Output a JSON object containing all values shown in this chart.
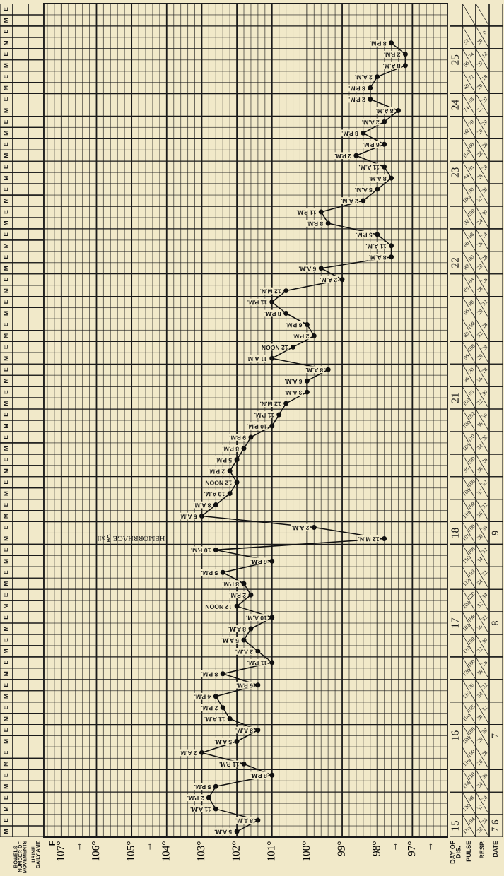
{
  "chart_data": [
    {
      "type": "other",
      "categories": [
        "BOWELS\nNUMBER OF\nMOVEMENTS",
        "URINE\nDAILY AMT."
      ],
      "y_categories": [
        "E",
        "M",
        "E",
        "M",
        "E",
        "M",
        "E",
        "M",
        "E",
        "M",
        "E",
        "M",
        "E",
        "M",
        "E",
        "M",
        "E",
        "M",
        "E",
        "M",
        "E",
        "M",
        "E",
        "M",
        "E",
        "M",
        "E",
        "M",
        "E",
        "M",
        "E",
        "M",
        "E",
        "M",
        "E",
        "M",
        "E",
        "M",
        "E",
        "M",
        "E",
        "M",
        "E",
        "M",
        "E",
        "M",
        "E",
        "M",
        "E",
        "M",
        "E",
        "M",
        "E",
        "M",
        "E",
        "M",
        "E",
        "M",
        "E",
        "M",
        "E",
        "M",
        "E",
        "M",
        "E",
        "M",
        "E",
        "M",
        "E",
        "M",
        "E",
        "M",
        "E",
        "M"
      ]
    },
    {
      "type": "line",
      "orientation": "horizontal",
      "color": "#111111",
      "marker": "circle",
      "line_style": "solid",
      "grid": true,
      "tick_labels": "x",
      "categories": [
        "8 P.M.",
        "2 P.M.",
        "8 A.M.",
        "2 A.M.",
        "8 P.M.",
        "2 P.M.",
        "8 A.M.",
        "2 A.M.",
        "8 P.M.",
        "6 P.M.",
        "2 P.M.",
        "11 A.M.",
        "8 A.M.",
        "5 A.M.",
        "2 A.M.",
        "11 P.M.",
        "8 P.M.",
        "5 P.M.",
        "11 A.M.",
        "8 A.M.",
        "6 A.M.",
        "2 A.M.",
        "12 M.N.",
        "11 P.M.",
        "8 P.M.",
        "6 P.M.",
        "2 P.M.",
        "12 NOON",
        "11 A.M.",
        "8 A.M.",
        "6 A.M.",
        "3 A.M.",
        "12 M.N.",
        "11 P.M.",
        "10 P.M.",
        "9 P.M.",
        "8 P.M.",
        "5 P.M.",
        "2 P.M.",
        "12 NOON",
        "10 A.M.",
        "8 A.M.",
        "5 A.M.",
        "2 A.M.",
        "12 M.N.",
        "10 P.M.",
        "6 P.M.",
        "5 P.M.",
        "8 P.M.",
        "2 P.M.",
        "12 NOON",
        "10 A.M.",
        "8 A.M.",
        "5 A.M.",
        "2 A.M.",
        "11 P.M.",
        "8 P.M.",
        "6 P.M.",
        "4 P.M.",
        "2 P.M.",
        "11 A.M.",
        "8 A.M.",
        "5 A.M.",
        "2 A.M.",
        "11 P.M.",
        "8 P.M.",
        "5 P.M.",
        "2 P.M.",
        "11 A.M.",
        "8 A.M.",
        "5 A.M."
      ],
      "values": [
        97.6,
        97.2,
        97.2,
        98.0,
        98.2,
        98.2,
        97.4,
        97.8,
        98.4,
        97.8,
        98.6,
        97.8,
        97.6,
        98.0,
        98.4,
        99.6,
        99.4,
        98.0,
        97.6,
        97.6,
        99.6,
        99.0,
        100.6,
        101.0,
        100.6,
        100.0,
        99.8,
        100.4,
        101.0,
        99.4,
        100.0,
        100.0,
        100.6,
        100.8,
        101.0,
        101.6,
        101.8,
        102.0,
        102.2,
        102.0,
        102.2,
        102.6,
        103.0,
        99.8,
        97.8,
        102.6,
        101.0,
        102.4,
        101.8,
        101.6,
        102.0,
        101.0,
        101.6,
        101.8,
        101.4,
        101.0,
        102.4,
        101.4,
        102.6,
        102.4,
        102.2,
        101.4,
        102.0,
        103.0,
        101.8,
        101.0,
        102.6,
        102.8,
        102.6,
        101.4,
        102.0
      ],
      "xlim": [
        107.5,
        96
      ],
      "xticks": [
        {
          "value": 107,
          "label": "107°"
        },
        {
          "value": 106.5,
          "label": "→"
        },
        {
          "value": 106,
          "label": "106°"
        },
        {
          "value": 105,
          "label": "105°"
        },
        {
          "value": 104.5,
          "label": "→"
        },
        {
          "value": 104,
          "label": "104°"
        },
        {
          "value": 103,
          "label": "103°"
        },
        {
          "value": 102,
          "label": "102°"
        },
        {
          "value": 101,
          "label": "101°"
        },
        {
          "value": 100,
          "label": "100°"
        },
        {
          "value": 99,
          "label": "99°"
        },
        {
          "value": 98,
          "label": "98°"
        },
        {
          "value": 97.5,
          "label": "→"
        },
        {
          "value": 97,
          "label": "97°"
        },
        {
          "value": 96.5,
          "label": "→"
        }
      ],
      "annotations": [
        "F",
        "HEMORRHAGE ℥ xii"
      ]
    },
    {
      "type": "other",
      "categories": [
        "DAY OF\nDIS.",
        "PULSE",
        "RESP.",
        "DATE"
      ],
      "cell_labels": [
        [
          null,
          null,
          null,
          null,
          null,
          null
        ],
        [
          null,
          null,
          "52",
          "0",
          "20",
          null
        ],
        [
          "25",
          "74",
          "56",
          "18",
          "20",
          null
        ],
        [
          null,
          "72",
          "60",
          "18",
          "20",
          null
        ],
        [
          "24",
          "63",
          "74",
          "20",
          "22",
          null
        ],
        [
          null,
          "70",
          "92",
          "20",
          "28",
          null
        ],
        [
          null,
          "88",
          "100",
          "28",
          "28",
          null
        ],
        [
          "23",
          "81",
          "84",
          "28",
          "28",
          null
        ],
        [
          null,
          "90",
          "100",
          "30",
          "32",
          null
        ],
        [
          null,
          "100",
          "92",
          "30",
          "24",
          null
        ],
        [
          null,
          "88",
          "80",
          "24",
          "28",
          null
        ],
        [
          "22",
          "80",
          "80",
          "28",
          "28",
          null
        ],
        [
          null,
          "84",
          "88",
          "28",
          "28",
          null
        ],
        [
          null,
          "88",
          "96",
          "32",
          "28",
          null
        ],
        [
          null,
          "108",
          "88",
          "28",
          "32",
          null
        ],
        [
          null,
          "108",
          "96",
          "28",
          "28",
          null
        ],
        [
          null,
          "90",
          "96",
          "28",
          "36",
          null
        ],
        [
          "21",
          "90",
          "100",
          "30",
          "32",
          null
        ],
        [
          null,
          "102",
          "100",
          "30",
          "36",
          null
        ],
        [
          null,
          "110",
          "104",
          "36",
          "34",
          null
        ],
        [
          null,
          "100",
          "96",
          "28",
          "36",
          null
        ],
        [
          null,
          "108",
          "100",
          "32",
          "37",
          null
        ],
        [
          null,
          "108",
          "118",
          "32",
          "36",
          null
        ],
        [
          "18",
          "100",
          "101",
          "34",
          "36",
          "9"
        ],
        [
          null,
          "108",
          "110",
          "32",
          "34",
          null
        ],
        [
          null,
          "103",
          "112",
          "32",
          "34",
          null
        ],
        [
          null,
          "120",
          "108",
          "34",
          "32",
          null
        ],
        [
          "17",
          "108",
          "102",
          "32",
          "30",
          "8"
        ],
        [
          null,
          "108",
          "110",
          "30",
          "32",
          null
        ],
        [
          null,
          "100",
          "128",
          "28",
          "36",
          null
        ],
        [
          null,
          "96",
          "110",
          "32",
          "34",
          null
        ],
        [
          null,
          "105",
          "100",
          "32",
          "30",
          null
        ],
        [
          "16",
          "108",
          "100",
          "30",
          "28",
          "7"
        ],
        [
          null,
          "100",
          "116",
          "28",
          "28",
          null
        ],
        [
          null,
          "110",
          "114",
          "38",
          "34",
          null
        ],
        [
          null,
          "88",
          "120",
          "24",
          "32",
          null
        ],
        [
          "15",
          "104",
          "110",
          "34",
          "38",
          "7 6"
        ]
      ]
    }
  ]
}
